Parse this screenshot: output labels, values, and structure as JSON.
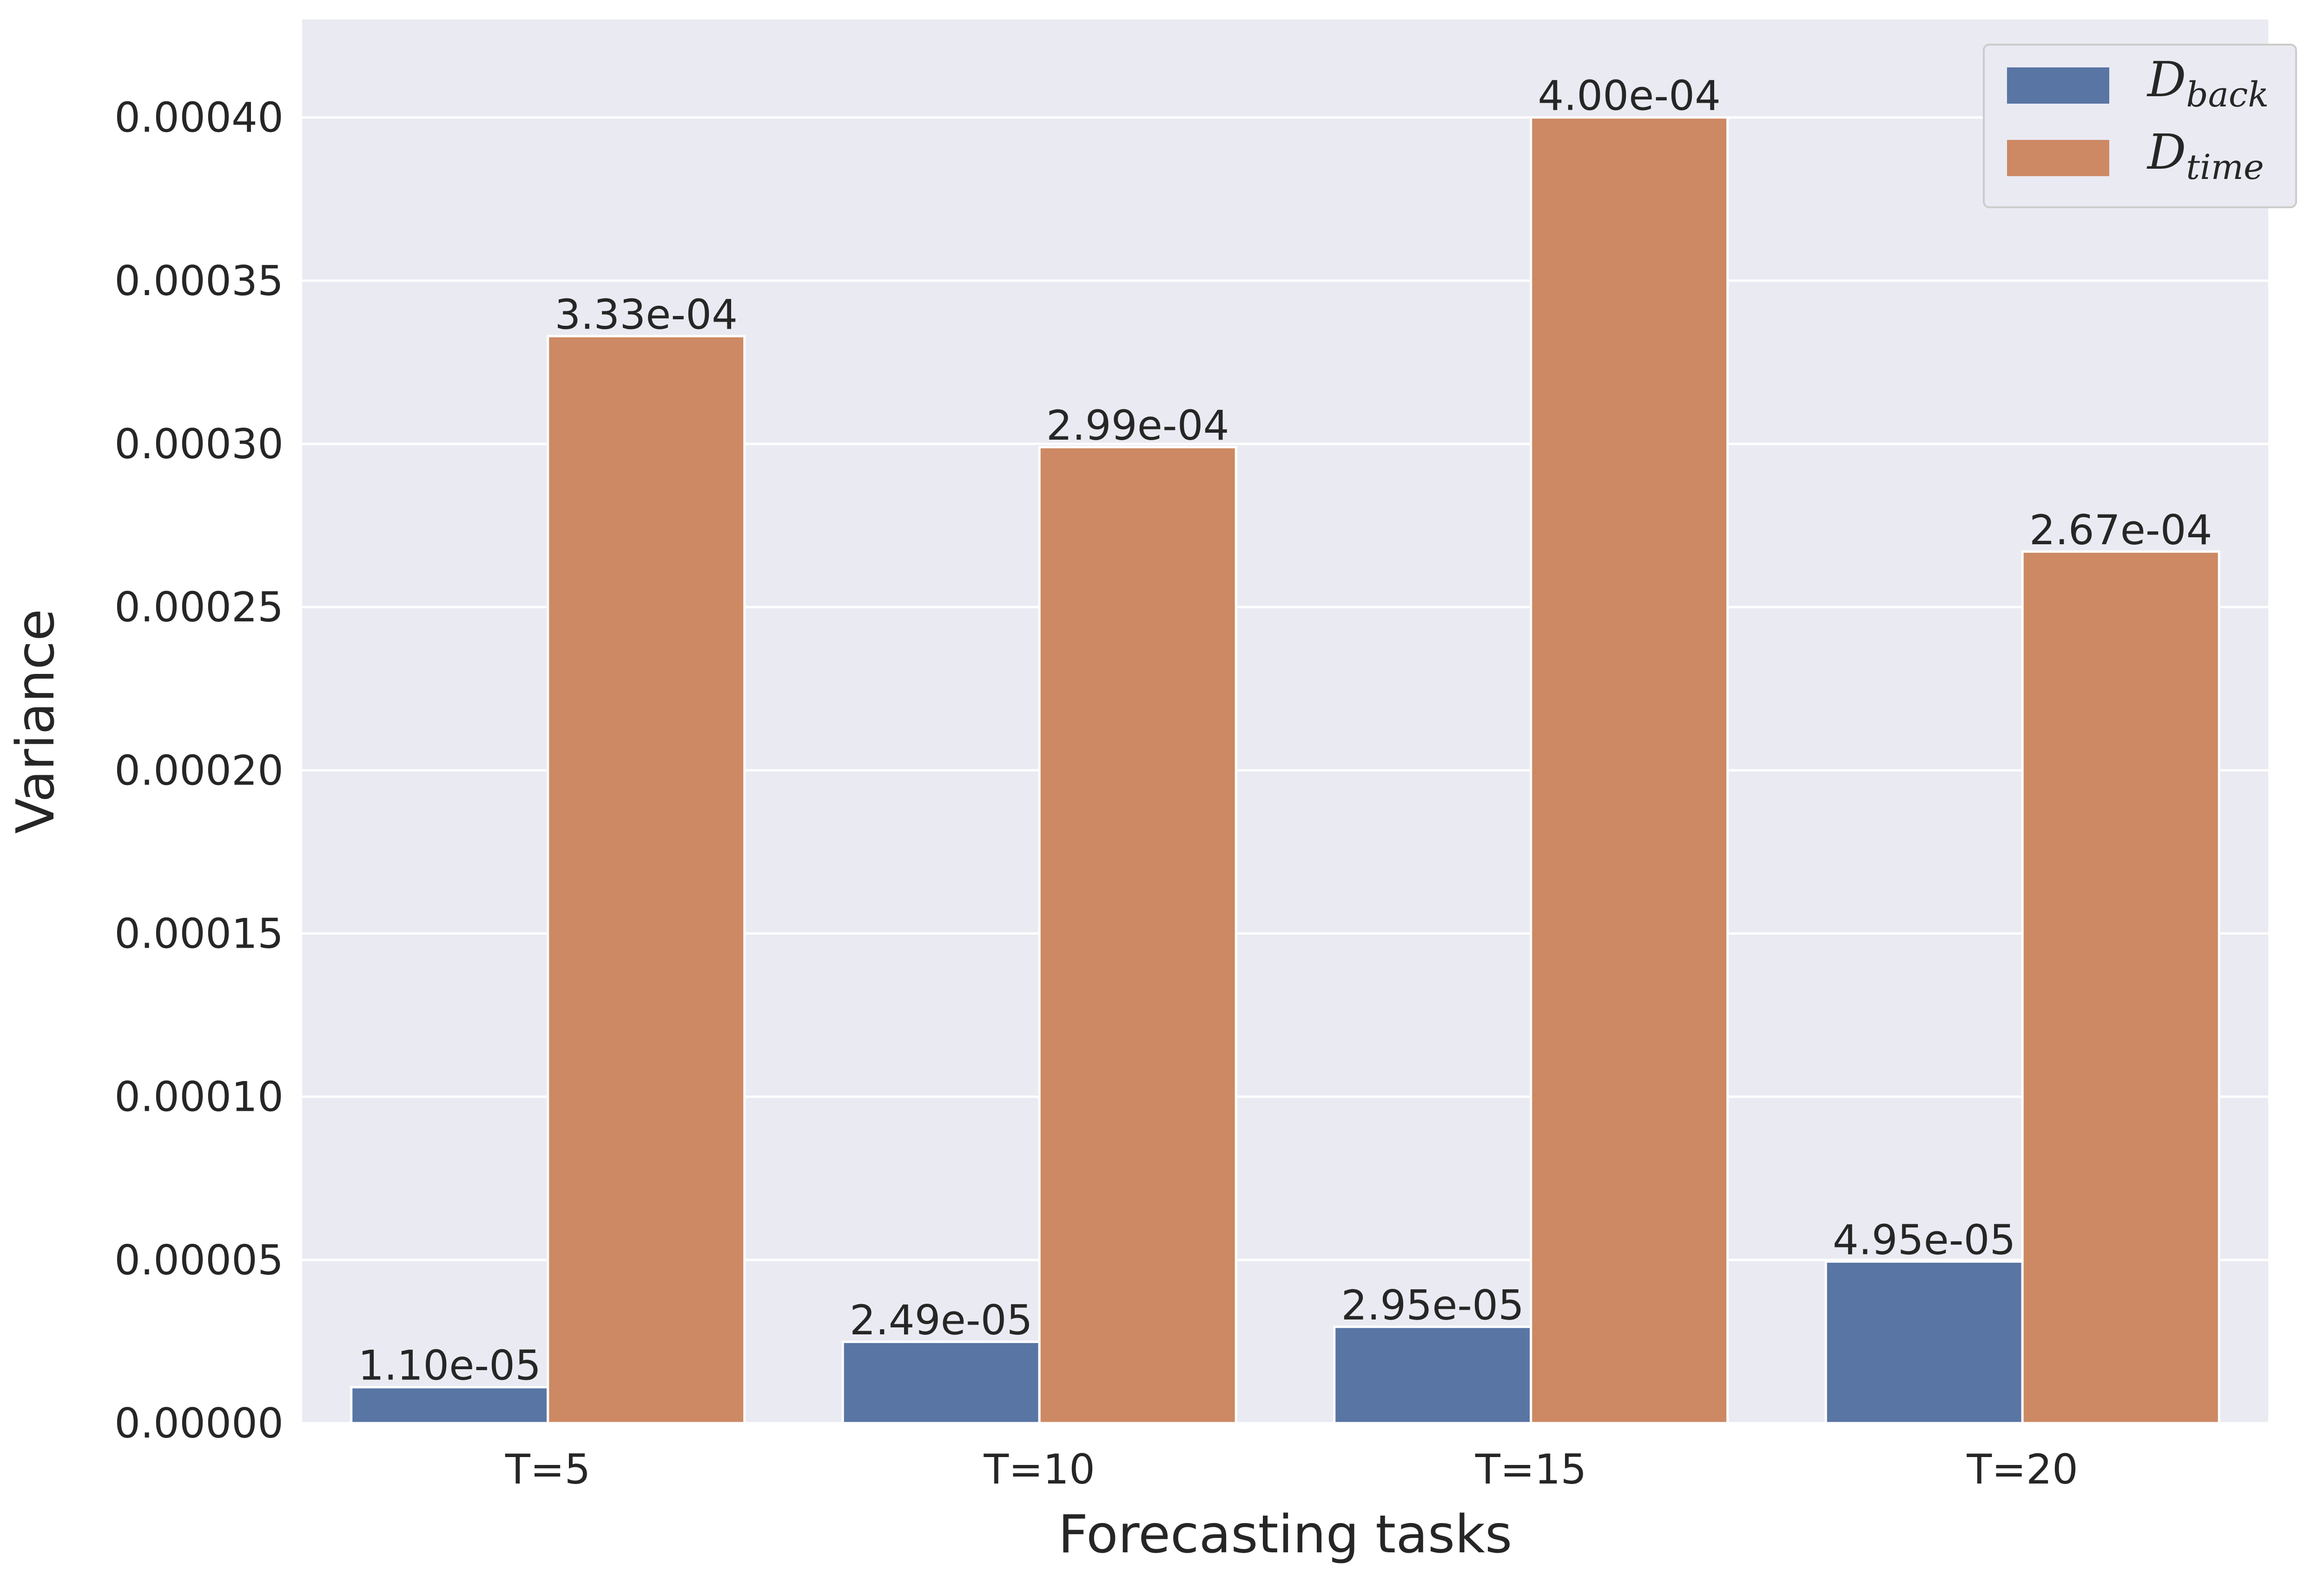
{
  "chart_data": {
    "type": "bar",
    "title": "",
    "xlabel": "Forecasting tasks",
    "ylabel": "Variance",
    "categories": [
      "T=5",
      "T=10",
      "T=15",
      "T=20"
    ],
    "series": [
      {
        "name": "D_back",
        "legend_main": "D",
        "legend_sub": "back",
        "color": "#5975a4",
        "values": [
          1.1e-05,
          2.49e-05,
          2.95e-05,
          4.95e-05
        ],
        "labels": [
          "1.10e-05",
          "2.49e-05",
          "2.95e-05",
          "4.95e-05"
        ]
      },
      {
        "name": "D_time",
        "legend_main": "D",
        "legend_sub": "time",
        "color": "#cc8963",
        "values": [
          0.000333,
          0.000299,
          0.0004,
          0.000267
        ],
        "labels": [
          "3.33e-04",
          "2.99e-04",
          "4.00e-04",
          "2.67e-04"
        ]
      }
    ],
    "yticks": [
      "0.00000",
      "0.00005",
      "0.00010",
      "0.00015",
      "0.00020",
      "0.00025",
      "0.00030",
      "0.00035",
      "0.00040"
    ],
    "ytick_values": [
      0,
      5e-05,
      0.0001,
      0.00015,
      0.0002,
      0.00025,
      0.0003,
      0.00035,
      0.0004
    ],
    "ylim": [
      0,
      0.00043
    ],
    "grid": true,
    "legend_position": "top-right",
    "background_color": "#eaeaf2"
  }
}
